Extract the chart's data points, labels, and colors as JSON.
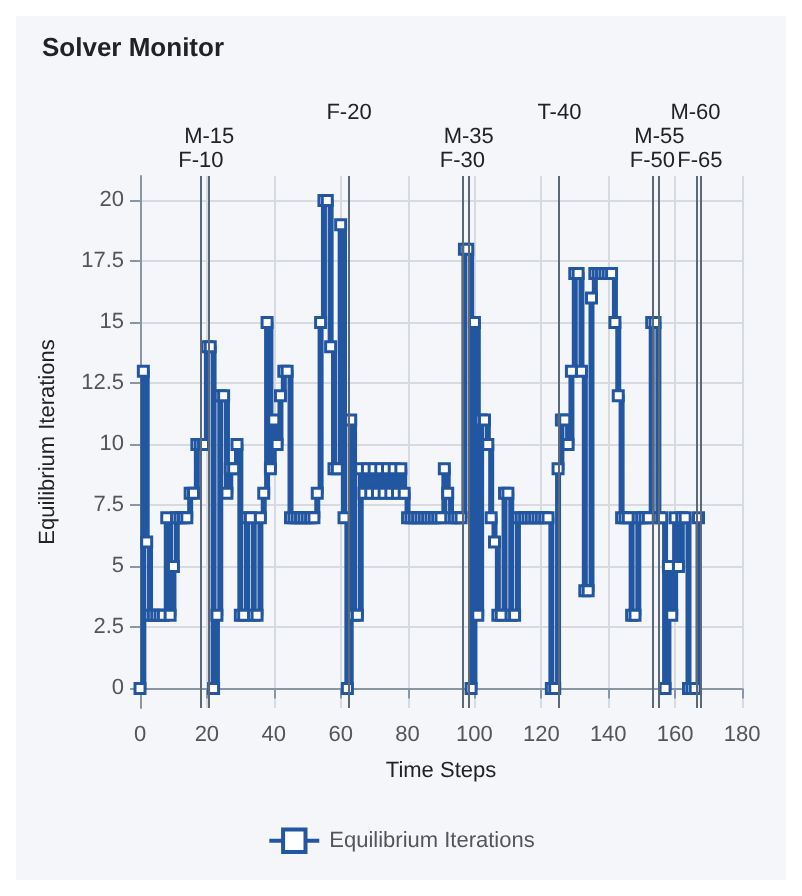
{
  "chart_data": {
    "type": "step",
    "title": "Solver Monitor",
    "xlabel": "Time Steps",
    "ylabel": "Equilibrium Iterations",
    "x": [
      0,
      1,
      2,
      3,
      4,
      5,
      6,
      7,
      8,
      9,
      10,
      11,
      12,
      13,
      14,
      15,
      16,
      17,
      18,
      19,
      20,
      21,
      22,
      23,
      24,
      25,
      26,
      27,
      28,
      29,
      30,
      31,
      32,
      33,
      34,
      35,
      36,
      37,
      38,
      39,
      40,
      41,
      42,
      43,
      44,
      45,
      46,
      47,
      48,
      49,
      50,
      51,
      52,
      53,
      54,
      55,
      56,
      57,
      58,
      59,
      60,
      61,
      62,
      63,
      64,
      65,
      66,
      67,
      68,
      69,
      70,
      71,
      72,
      73,
      74,
      75,
      76,
      77,
      78,
      79,
      80,
      81,
      82,
      83,
      84,
      85,
      86,
      87,
      88,
      89,
      90,
      91,
      92,
      93,
      94,
      95,
      96,
      97,
      98,
      99,
      100,
      101,
      102,
      103,
      104,
      105,
      106,
      107,
      108,
      109,
      110,
      111,
      112,
      113,
      114,
      115,
      116,
      117,
      118,
      119,
      120,
      121,
      122,
      123,
      124,
      125,
      126,
      127,
      128,
      129,
      130,
      131,
      132,
      133,
      134,
      135,
      136,
      137,
      138,
      139,
      140,
      141,
      142,
      143,
      144,
      145,
      146,
      147,
      148,
      149,
      150,
      151,
      152,
      153,
      154,
      155,
      156,
      157,
      158,
      159,
      160,
      161,
      162,
      163,
      164,
      165,
      166,
      167
    ],
    "series": [
      {
        "name": "Equilibrium Iterations",
        "color": "#2356a0",
        "values": [
          0,
          13,
          6,
          3,
          3,
          3,
          3,
          3,
          7,
          3,
          5,
          7,
          7,
          7,
          7,
          8,
          8,
          10,
          10,
          10,
          14,
          14,
          0,
          3,
          12,
          12,
          8,
          9,
          9,
          10,
          3,
          3,
          7,
          7,
          3,
          3,
          7,
          8,
          15,
          9,
          11,
          10,
          12,
          13,
          13,
          7,
          7,
          7,
          7,
          7,
          7,
          7,
          7,
          8,
          15,
          20,
          20,
          14,
          9,
          9,
          19,
          7,
          0,
          11,
          3,
          3,
          9,
          8,
          9,
          8,
          9,
          8,
          9,
          8,
          9,
          8,
          9,
          8,
          9,
          8,
          7,
          7,
          7,
          7,
          7,
          7,
          7,
          7,
          7,
          7,
          7,
          9,
          8,
          7,
          7,
          7,
          7,
          18,
          18,
          0,
          15,
          3,
          11,
          11,
          10,
          7,
          6,
          3,
          3,
          8,
          8,
          3,
          3,
          7,
          7,
          7,
          7,
          7,
          7,
          7,
          7,
          7,
          7,
          0,
          0,
          9,
          11,
          11,
          10,
          13,
          17,
          17,
          13,
          4,
          4,
          16,
          17,
          17,
          17,
          17,
          17,
          17,
          15,
          12,
          7,
          7,
          7,
          3,
          3,
          7,
          7,
          7,
          7,
          15,
          15,
          7,
          7,
          0,
          5,
          3,
          7,
          5,
          7,
          7,
          0,
          0,
          0,
          7
        ]
      }
    ],
    "xlim": [
      0,
      180
    ],
    "xticks": [
      0,
      20,
      40,
      60,
      80,
      100,
      120,
      140,
      160,
      180
    ],
    "ylim": [
      -0.8,
      21
    ],
    "yticks": [
      0,
      2.5,
      5,
      7.5,
      10,
      12.5,
      15,
      17.5,
      20
    ],
    "grid": true,
    "legend": "bottom",
    "marker": "square",
    "ref_lines": [
      {
        "axis": "x",
        "value": 18.2,
        "label": "F-10",
        "color": "#5a6878"
      },
      {
        "axis": "x",
        "value": 20.7,
        "label": "M-15",
        "color": "#5a6878"
      },
      {
        "axis": "x",
        "value": 62.5,
        "label": "F-20",
        "color": "#5a6878"
      },
      {
        "axis": "x",
        "value": 96.4,
        "label": "F-30",
        "color": "#5a6878"
      },
      {
        "axis": "x",
        "value": 98.3,
        "label": "M-35",
        "color": "#5a6878"
      },
      {
        "axis": "x",
        "value": 125.4,
        "label": "T-40",
        "color": "#5a6878"
      },
      {
        "axis": "x",
        "value": 153.2,
        "label": "F-50",
        "color": "#5a6878"
      },
      {
        "axis": "x",
        "value": 155.3,
        "label": "M-55",
        "color": "#5a6878"
      },
      {
        "axis": "x",
        "value": 166.1,
        "label": "M-60",
        "color": "#5a6878"
      },
      {
        "axis": "x",
        "value": 167.4,
        "label": "F-65",
        "color": "#5a6878"
      }
    ]
  }
}
